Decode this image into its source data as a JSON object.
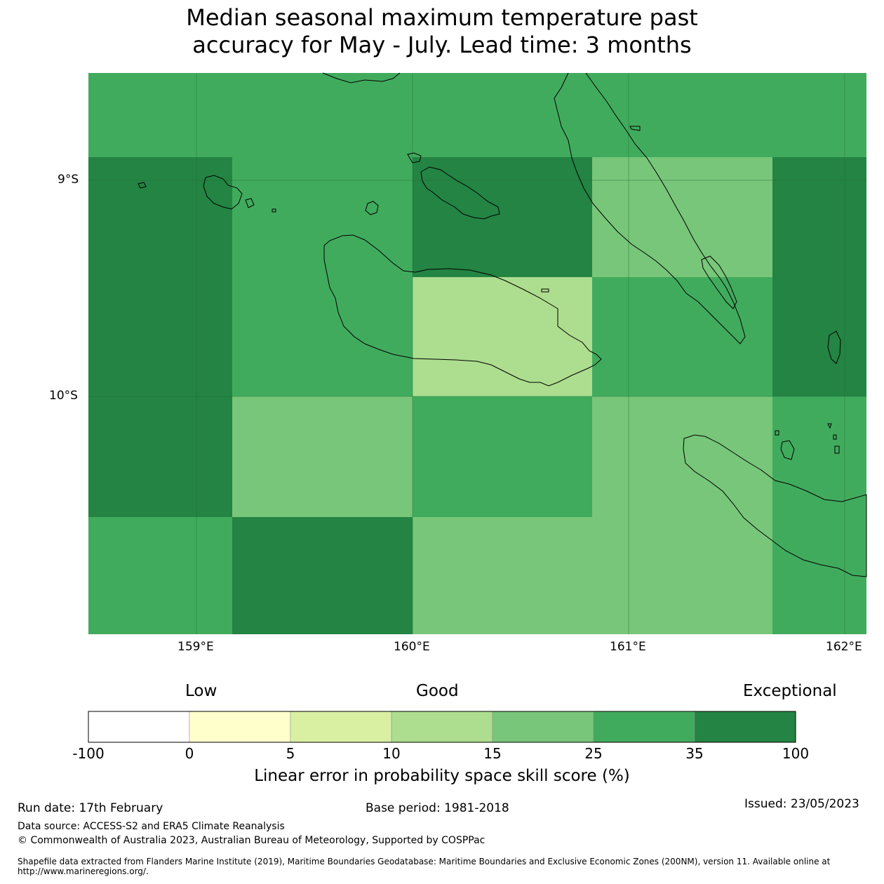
{
  "title_line1": "Median seasonal maximum temperature past",
  "title_line2": "accuracy for May - July. Lead time: 3 months",
  "axes": {
    "lat_labels": [
      "9°S",
      "10°S"
    ],
    "lon_labels": [
      "159°E",
      "160°E",
      "161°E",
      "162°E"
    ]
  },
  "grid_values_percent_band": {
    "note_rows": "top to bottom",
    "rows": [
      [
        "25-35",
        "25-35",
        "25-35",
        "25-35",
        "25-35"
      ],
      [
        "35-100",
        "25-35",
        "35-100",
        "15-25",
        "35-100"
      ],
      [
        "35-100",
        "25-35",
        "10-15",
        "25-35",
        "35-100"
      ],
      [
        "35-100",
        "15-25",
        "25-35",
        "15-25",
        "25-35"
      ],
      [
        "25-35",
        "35-100",
        "15-25",
        "15-25",
        "25-35"
      ]
    ]
  },
  "colorbar": {
    "category_low": "Low",
    "category_good": "Good",
    "category_exceptional": "Exceptional",
    "ticks": [
      "-100",
      "0",
      "5",
      "10",
      "15",
      "25",
      "35",
      "100"
    ],
    "colors": [
      "#ffffff",
      "#ffffcc",
      "#d9f0a3",
      "#addd8e",
      "#78c679",
      "#41ab5d",
      "#238443"
    ],
    "label": "Linear error in probability space skill score (%)"
  },
  "footer": {
    "run_date": "Run date: 17th February",
    "base_period": "Base period: 1981-2018",
    "issued": "Issued: 23/05/2023",
    "data_source": "Data source: ACCESS-S2 and ERA5 Climate Reanalysis",
    "copyright": "© Commonwealth of Australia 2023, Australian Bureau of Meteorology, Supported by COSPPac",
    "shapefile_line1": "Shapefile data extracted from Flanders Marine Institute (2019), Maritime Boundaries Geodatabase: Maritime Boundaries and Exclusive Economic Zones (200NM), version 11. Available online at",
    "shapefile_line2": "http://www.marineregions.org/."
  }
}
